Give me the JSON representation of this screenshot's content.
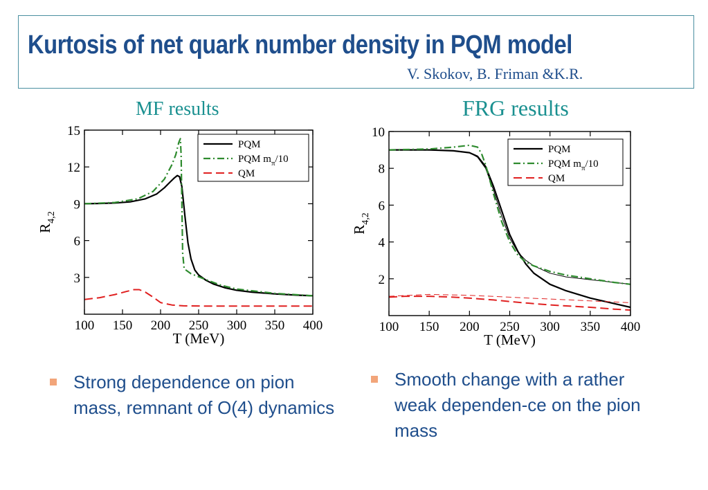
{
  "slide": {
    "title": "Kurtosis of net quark number density in PQM model",
    "authors": "V. Skokov, B. Friman &K.R.",
    "panel_left_heading": "MF results",
    "panel_right_heading": "FRG results",
    "bullets_left": [
      "Strong dependence on pion mass, remnant of O(4) dynamics"
    ],
    "bullets_right": [
      "Smooth change with a rather weak dependen-ce on the pion mass"
    ]
  },
  "colors": {
    "title": "#1f4e8c",
    "heading": "#1a9090",
    "bullet_marker": "#f2a57a",
    "pqm": "#000000",
    "pqm_mpi10": "#2e8b2e",
    "qm": "#e02020"
  },
  "chart_data": [
    {
      "type": "line",
      "xlabel": "T (MeV)",
      "ylabel": "R",
      "ylabel_sub": "4,2",
      "xlim": [
        100,
        400
      ],
      "ylim": [
        0,
        15
      ],
      "xticks": [
        100,
        150,
        200,
        250,
        300,
        350,
        400
      ],
      "yticks": [
        3,
        6,
        9,
        12,
        15
      ],
      "legend_position": "top-right",
      "legend": {
        "pqm": "PQM",
        "pqm_mpi10": "PQM m",
        "pqm_mpi10_sub": "π",
        "pqm_mpi10_tail": "/10",
        "qm": "QM"
      },
      "series": [
        {
          "key": "pqm",
          "style": "solid",
          "x": [
            100,
            120,
            140,
            160,
            180,
            195,
            205,
            213,
            218,
            222,
            225,
            228,
            232,
            236,
            240,
            245,
            250,
            260,
            270,
            285,
            300,
            320,
            350,
            380,
            400
          ],
          "y": [
            9.0,
            9.02,
            9.06,
            9.15,
            9.4,
            9.8,
            10.3,
            10.8,
            11.1,
            11.3,
            11.2,
            10.4,
            8.0,
            5.8,
            4.5,
            3.6,
            3.2,
            2.75,
            2.45,
            2.15,
            1.95,
            1.8,
            1.65,
            1.55,
            1.5
          ]
        },
        {
          "key": "pqm_mpi10",
          "style": "dashdot",
          "x": [
            100,
            140,
            170,
            190,
            205,
            215,
            220,
            224,
            226,
            227,
            228,
            229,
            231,
            240,
            250,
            260,
            280,
            300,
            350,
            400
          ],
          "y": [
            9.0,
            9.1,
            9.4,
            10.0,
            11.0,
            12.2,
            13.0,
            14.0,
            14.3,
            13.0,
            9.0,
            5.0,
            3.7,
            3.3,
            3.05,
            2.8,
            2.35,
            2.05,
            1.7,
            1.5
          ]
        },
        {
          "key": "qm",
          "style": "dashed",
          "x": [
            100,
            120,
            140,
            155,
            165,
            172,
            180,
            190,
            200,
            215,
            230,
            260,
            300,
            350,
            400
          ],
          "y": [
            1.2,
            1.35,
            1.6,
            1.85,
            2.0,
            2.0,
            1.8,
            1.4,
            0.95,
            0.75,
            0.68,
            0.66,
            0.66,
            0.66,
            0.66
          ]
        }
      ]
    },
    {
      "type": "line",
      "xlabel": "T (MeV)",
      "ylabel": "R",
      "ylabel_sub": "4,2",
      "xlim": [
        100,
        400
      ],
      "ylim": [
        0,
        10
      ],
      "xticks": [
        100,
        150,
        200,
        250,
        300,
        350,
        400
      ],
      "yticks": [
        2,
        4,
        6,
        8,
        10
      ],
      "legend_position": "top-right",
      "legend": {
        "pqm": "PQM",
        "pqm_mpi10": "PQM m",
        "pqm_mpi10_sub": "π",
        "pqm_mpi10_tail": "/10",
        "qm": "QM"
      },
      "series": [
        {
          "key": "pqm",
          "style": "solid",
          "x": [
            100,
            150,
            180,
            200,
            210,
            220,
            230,
            240,
            250,
            260,
            270,
            280,
            300,
            320,
            350,
            380,
            400
          ],
          "y": [
            9.0,
            9.0,
            8.95,
            8.85,
            8.65,
            8.1,
            7.0,
            5.7,
            4.4,
            3.5,
            2.8,
            2.3,
            1.7,
            1.35,
            0.95,
            0.65,
            0.45
          ]
        },
        {
          "key": "pqm_thin",
          "style": "solid_thin",
          "x": [
            100,
            150,
            180,
            200,
            210,
            220,
            230,
            240,
            250,
            260,
            270,
            280,
            300,
            320,
            350,
            380,
            400
          ],
          "y": [
            9.0,
            9.0,
            8.95,
            8.85,
            8.6,
            8.0,
            6.8,
            5.4,
            4.2,
            3.45,
            3.0,
            2.7,
            2.3,
            2.1,
            1.95,
            1.8,
            1.7
          ]
        },
        {
          "key": "pqm_mpi10",
          "style": "dashdot",
          "x": [
            100,
            150,
            180,
            200,
            210,
            215,
            220,
            230,
            240,
            250,
            260,
            270,
            280,
            300,
            320,
            350,
            380,
            400
          ],
          "y": [
            9.0,
            9.05,
            9.15,
            9.25,
            9.15,
            8.8,
            8.2,
            6.6,
            5.1,
            4.0,
            3.3,
            2.9,
            2.7,
            2.4,
            2.2,
            2.0,
            1.8,
            1.7
          ]
        },
        {
          "key": "qm",
          "style": "dashed",
          "x": [
            100,
            120,
            150,
            180,
            200,
            230,
            260,
            300,
            350,
            380,
            400
          ],
          "y": [
            1.0,
            1.05,
            1.05,
            1.0,
            0.95,
            0.85,
            0.72,
            0.58,
            0.45,
            0.35,
            0.3
          ]
        },
        {
          "key": "qm_thin",
          "style": "dashed_thin",
          "x": [
            100,
            150,
            200,
            250,
            300,
            350,
            400
          ],
          "y": [
            1.05,
            1.15,
            1.1,
            1.0,
            0.9,
            0.8,
            0.7
          ]
        }
      ]
    }
  ]
}
